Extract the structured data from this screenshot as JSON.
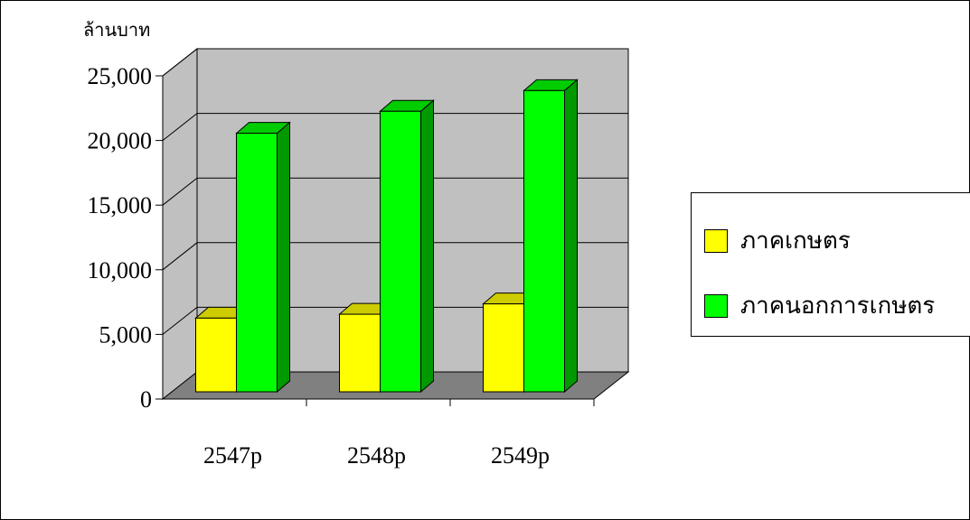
{
  "chart_data": {
    "type": "bar",
    "unit_label": "ล้านบาท",
    "categories": [
      "2547p",
      "2548p",
      "2549p"
    ],
    "series": [
      {
        "name": "ภาคเกษตร",
        "color": "#FFFF00",
        "values": [
          5700,
          6000,
          6800
        ]
      },
      {
        "name": "ภาคนอกการเกษตร",
        "color": "#00FF00",
        "values": [
          20000,
          21700,
          23300
        ]
      }
    ],
    "y_ticks": [
      "0",
      "5,000",
      "10,000",
      "15,000",
      "20,000",
      "25,000"
    ],
    "ylim": [
      0,
      25000
    ],
    "grid": true,
    "legend_position": "right"
  }
}
